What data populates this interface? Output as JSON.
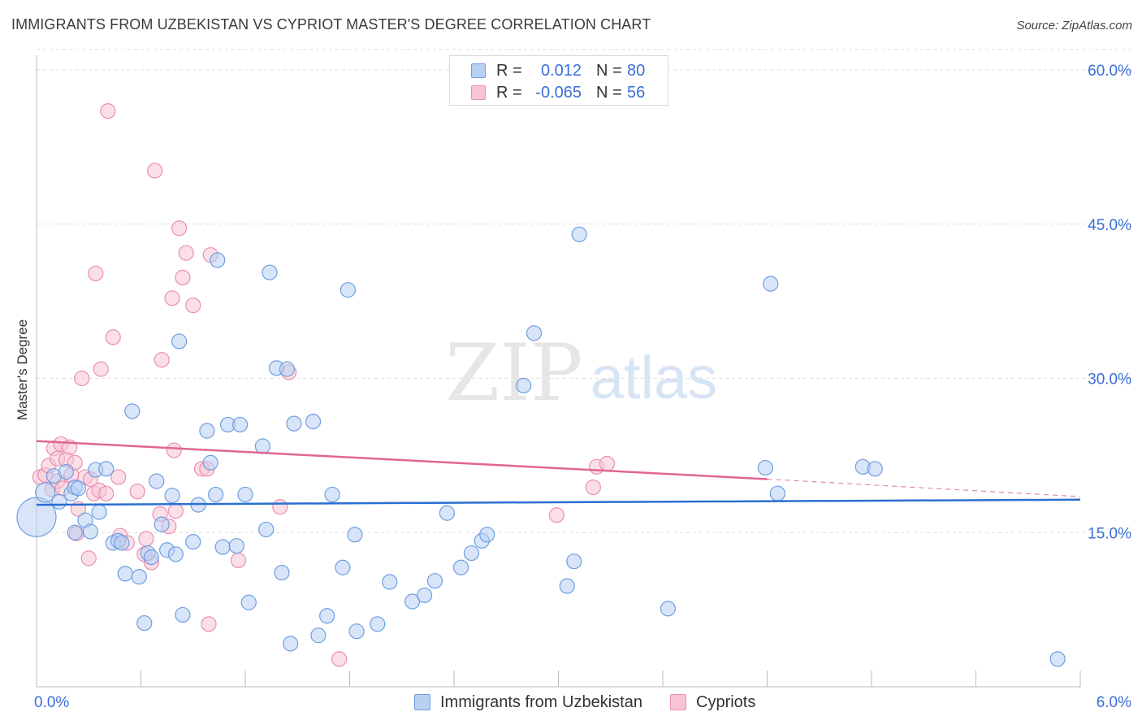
{
  "header": {
    "title": "IMMIGRANTS FROM UZBEKISTAN VS CYPRIOT MASTER'S DEGREE CORRELATION CHART",
    "source": "Source: ZipAtlas.com"
  },
  "watermark": {
    "zip": "ZIP",
    "atlas": "atlas"
  },
  "legend_top": {
    "rows": [
      {
        "r_label": "R =",
        "r_value": "0.012",
        "n_label": "N =",
        "n_value": "80"
      },
      {
        "r_label": "R =",
        "r_value": "-0.065",
        "n_label": "N =",
        "n_value": "56"
      }
    ]
  },
  "legend_bottom": {
    "series1": "Immigrants from Uzbekistan",
    "series2": "Cypriots"
  },
  "colors": {
    "blue_fill": "#b8d0f2",
    "blue_stroke": "#6f9ee0",
    "blue_line": "#2a6fd1",
    "pink_fill": "#f7c4d4",
    "pink_stroke": "#ea8fb0",
    "pink_line": "#e06690",
    "tick_label": "#3a6fd8",
    "grid": "#dddddd"
  },
  "chart_data": {
    "type": "scatter",
    "title": "IMMIGRANTS FROM UZBEKISTAN VS CYPRIOT MASTER'S DEGREE CORRELATION CHART",
    "xlabel": "",
    "ylabel": "Master's Degree",
    "xlim": [
      0,
      6
    ],
    "ylim": [
      0,
      62
    ],
    "x_tick_labels": [
      "0.0%",
      "6.0%"
    ],
    "y_ticks": [
      15,
      30,
      45,
      60
    ],
    "y_tick_labels": [
      "15.0%",
      "30.0%",
      "45.0%",
      "60.0%"
    ],
    "grid": true,
    "series": [
      {
        "name": "Immigrants from Uzbekistan",
        "r": 0.012,
        "n": 80,
        "trend": {
          "x0": 0,
          "y0": 17.7,
          "x1": 6,
          "y1": 18.2
        },
        "points": [
          [
            0.0,
            16.5,
            24
          ],
          [
            0.05,
            18.9,
            12
          ],
          [
            0.1,
            20.5,
            9
          ],
          [
            0.13,
            18.0,
            9
          ],
          [
            0.17,
            20.9,
            9
          ],
          [
            0.2,
            18.8,
            9
          ],
          [
            0.22,
            19.4,
            9
          ],
          [
            0.22,
            15.0,
            9
          ],
          [
            0.24,
            19.3,
            9
          ],
          [
            0.28,
            16.2,
            9
          ],
          [
            0.31,
            15.1,
            9
          ],
          [
            0.34,
            21.1,
            9
          ],
          [
            0.36,
            17.0,
            9
          ],
          [
            0.4,
            21.2,
            9
          ],
          [
            0.44,
            14.0,
            9
          ],
          [
            0.47,
            14.2,
            9
          ],
          [
            0.49,
            14.0,
            9
          ],
          [
            0.51,
            11.0,
            9
          ],
          [
            0.55,
            26.8,
            9
          ],
          [
            0.59,
            10.7,
            9
          ],
          [
            0.62,
            6.2,
            9
          ],
          [
            0.64,
            13.0,
            9
          ],
          [
            0.66,
            12.6,
            9
          ],
          [
            0.69,
            20.0,
            9
          ],
          [
            0.72,
            15.8,
            9
          ],
          [
            0.75,
            13.3,
            9
          ],
          [
            0.78,
            18.6,
            9
          ],
          [
            0.8,
            12.9,
            9
          ],
          [
            0.82,
            33.6,
            9
          ],
          [
            0.84,
            7.0,
            9
          ],
          [
            0.9,
            14.1,
            9
          ],
          [
            0.93,
            17.7,
            9
          ],
          [
            0.98,
            24.9,
            9
          ],
          [
            1.0,
            21.8,
            9
          ],
          [
            1.03,
            18.7,
            9
          ],
          [
            1.04,
            41.5,
            9
          ],
          [
            1.07,
            13.6,
            9
          ],
          [
            1.1,
            25.5,
            9
          ],
          [
            1.15,
            13.7,
            9
          ],
          [
            1.17,
            25.5,
            9
          ],
          [
            1.2,
            18.7,
            9
          ],
          [
            1.22,
            8.2,
            9
          ],
          [
            1.3,
            23.4,
            9
          ],
          [
            1.32,
            15.3,
            9
          ],
          [
            1.34,
            40.3,
            9
          ],
          [
            1.38,
            31.0,
            9
          ],
          [
            1.41,
            11.1,
            9
          ],
          [
            1.44,
            30.9,
            9
          ],
          [
            1.46,
            4.2,
            9
          ],
          [
            1.48,
            25.6,
            9
          ],
          [
            1.59,
            25.8,
            9
          ],
          [
            1.62,
            5.0,
            9
          ],
          [
            1.67,
            6.9,
            9
          ],
          [
            1.7,
            18.7,
            9
          ],
          [
            1.76,
            11.6,
            9
          ],
          [
            1.79,
            38.6,
            9
          ],
          [
            1.83,
            14.8,
            9
          ],
          [
            1.84,
            5.4,
            9
          ],
          [
            1.96,
            6.1,
            9
          ],
          [
            2.03,
            10.2,
            9
          ],
          [
            2.16,
            8.3,
            9
          ],
          [
            2.23,
            8.9,
            9
          ],
          [
            2.29,
            10.3,
            9
          ],
          [
            2.36,
            16.9,
            9
          ],
          [
            2.44,
            11.6,
            9
          ],
          [
            2.5,
            13.0,
            9
          ],
          [
            2.56,
            14.2,
            9
          ],
          [
            2.59,
            14.8,
            9
          ],
          [
            2.8,
            29.3,
            9
          ],
          [
            2.86,
            34.4,
            9
          ],
          [
            3.05,
            9.8,
            9
          ],
          [
            3.09,
            12.2,
            9
          ],
          [
            3.12,
            44.0,
            9
          ],
          [
            3.63,
            7.6,
            9
          ],
          [
            4.19,
            21.3,
            9
          ],
          [
            4.22,
            39.2,
            9
          ],
          [
            4.26,
            18.8,
            9
          ],
          [
            4.75,
            21.4,
            9
          ],
          [
            4.82,
            21.2,
            9
          ],
          [
            5.87,
            2.7,
            9
          ]
        ]
      },
      {
        "name": "Cypriots",
        "r": -0.065,
        "n": 56,
        "trend": {
          "x0": 0,
          "y0": 23.9,
          "x1": 4.2,
          "y1": 20.2,
          "dash_x1": 6,
          "dash_y1": 18.5
        },
        "points": [
          [
            0.02,
            20.4,
            9
          ],
          [
            0.05,
            20.6,
            9
          ],
          [
            0.07,
            21.5,
            9
          ],
          [
            0.09,
            19.2,
            9
          ],
          [
            0.1,
            23.2,
            9
          ],
          [
            0.12,
            20.0,
            9
          ],
          [
            0.12,
            22.2,
            9
          ],
          [
            0.14,
            23.6,
            9
          ],
          [
            0.15,
            19.3,
            9
          ],
          [
            0.17,
            22.1,
            9
          ],
          [
            0.19,
            23.3,
            9
          ],
          [
            0.2,
            20.6,
            9
          ],
          [
            0.22,
            21.8,
            9
          ],
          [
            0.23,
            14.9,
            9
          ],
          [
            0.24,
            17.3,
            9
          ],
          [
            0.26,
            30.0,
            9
          ],
          [
            0.28,
            20.4,
            9
          ],
          [
            0.3,
            12.5,
            9
          ],
          [
            0.31,
            20.2,
            9
          ],
          [
            0.33,
            18.8,
            9
          ],
          [
            0.34,
            40.2,
            9
          ],
          [
            0.36,
            19.1,
            9
          ],
          [
            0.37,
            30.9,
            9
          ],
          [
            0.4,
            18.8,
            9
          ],
          [
            0.41,
            56.0,
            9
          ],
          [
            0.44,
            34.0,
            9
          ],
          [
            0.47,
            20.4,
            9
          ],
          [
            0.48,
            14.7,
            9
          ],
          [
            0.52,
            14.0,
            9
          ],
          [
            0.58,
            19.0,
            9
          ],
          [
            0.62,
            12.9,
            9
          ],
          [
            0.63,
            14.4,
            9
          ],
          [
            0.66,
            12.1,
            9
          ],
          [
            0.68,
            50.2,
            9
          ],
          [
            0.71,
            16.8,
            9
          ],
          [
            0.72,
            31.8,
            9
          ],
          [
            0.76,
            15.6,
            9
          ],
          [
            0.78,
            37.8,
            9
          ],
          [
            0.79,
            23.0,
            9
          ],
          [
            0.8,
            17.1,
            9
          ],
          [
            0.82,
            44.6,
            9
          ],
          [
            0.84,
            39.8,
            9
          ],
          [
            0.86,
            42.2,
            9
          ],
          [
            0.9,
            37.1,
            9
          ],
          [
            0.95,
            21.2,
            9
          ],
          [
            0.98,
            21.2,
            9
          ],
          [
            0.99,
            6.1,
            9
          ],
          [
            1.0,
            42.0,
            9
          ],
          [
            1.16,
            12.3,
            9
          ],
          [
            1.4,
            17.5,
            9
          ],
          [
            1.45,
            30.6,
            9
          ],
          [
            1.74,
            2.7,
            9
          ],
          [
            2.99,
            16.7,
            9
          ],
          [
            3.2,
            19.4,
            9
          ],
          [
            3.22,
            21.4,
            9
          ],
          [
            3.28,
            21.7,
            9
          ]
        ]
      }
    ]
  }
}
